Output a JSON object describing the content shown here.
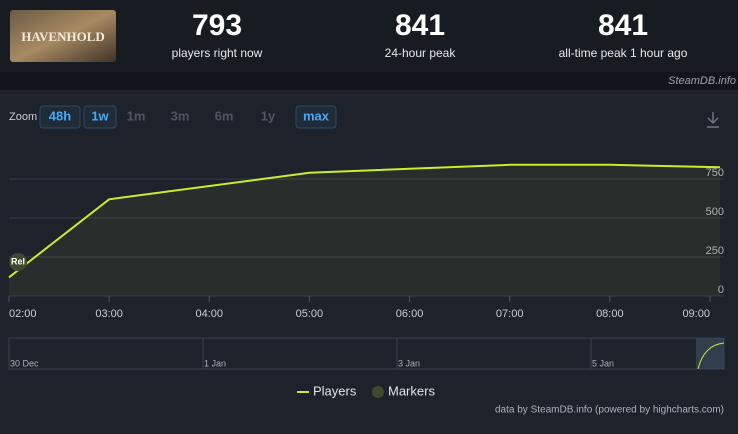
{
  "header": {
    "game": "HAVENHOLD",
    "stats": [
      {
        "value": "793",
        "label": "players right now"
      },
      {
        "value": "841",
        "label": "24-hour peak"
      },
      {
        "value": "841",
        "label": "all-time peak 1 hour ago"
      }
    ],
    "source": "SteamDB.info"
  },
  "zoom": {
    "label": "Zoom",
    "options": [
      {
        "label": "48h",
        "active": true
      },
      {
        "label": "1w",
        "active": true
      },
      {
        "label": "1m",
        "active": false
      },
      {
        "label": "3m",
        "active": false
      },
      {
        "label": "6m",
        "active": false
      },
      {
        "label": "1y",
        "active": false
      },
      {
        "label": "max",
        "active": true
      }
    ]
  },
  "chart_data": {
    "type": "line",
    "x": [
      2,
      3,
      5,
      7,
      8,
      9.1
    ],
    "series": [
      {
        "name": "Players",
        "color": "#c6ef2c",
        "values": [
          120,
          620,
          790,
          841,
          841,
          825
        ]
      }
    ],
    "markers": {
      "name": "Markers",
      "color": "#3d4a2c",
      "points": [
        {
          "x": 2,
          "label": "Rel"
        }
      ]
    },
    "xlim": [
      2,
      9.14
    ],
    "xticks": [
      {
        "value": 2,
        "label": "02:00"
      },
      {
        "value": 3,
        "label": "03:00"
      },
      {
        "value": 4,
        "label": "04:00"
      },
      {
        "value": 5,
        "label": "05:00"
      },
      {
        "value": 6,
        "label": "06:00"
      },
      {
        "value": 7,
        "label": "07:00"
      },
      {
        "value": 8,
        "label": "08:00"
      },
      {
        "value": 9,
        "label": "09:00"
      }
    ],
    "ylim": [
      0,
      1000
    ],
    "yticks": [
      0,
      250,
      500,
      750
    ],
    "grid": true,
    "navigator_labels": [
      "30 Dec",
      "1 Jan",
      "3 Jan",
      "5 Jan"
    ],
    "credit": "data by SteamDB.info (powered by highcharts.com)"
  }
}
